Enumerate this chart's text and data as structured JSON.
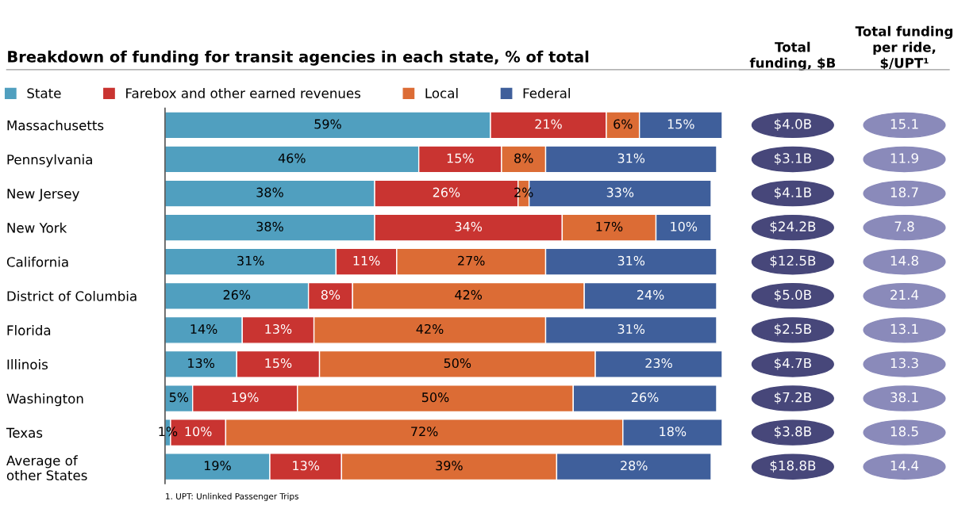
{
  "chart_data": [
    {
      "type": "bar",
      "orientation": "horizontal",
      "stacked": true,
      "legend": "top",
      "grid": false,
      "title": "Breakdown of funding for transit agencies in each state, % of total",
      "categories": [
        "Massachusetts",
        "Pennsylvania",
        "New Jersey",
        "New York",
        "California",
        "District of Columbia",
        "Florida",
        "Illinois",
        "Washington",
        "Texas",
        "Average of\nother States"
      ],
      "series": [
        {
          "name": "State",
          "color": "#509fbf",
          "values": [
            59,
            46,
            38,
            38,
            31,
            26,
            14,
            13,
            5,
            1,
            19
          ],
          "value_labels": [
            "59%",
            "46%",
            "38%",
            "38%",
            "31%",
            "26%",
            "14%",
            "13%",
            "5%",
            "1%",
            "19%"
          ]
        },
        {
          "name": "Farebox and other earned revenues",
          "color": "#c93431",
          "values": [
            21,
            15,
            26,
            34,
            11,
            8,
            13,
            15,
            19,
            10,
            13
          ],
          "value_labels": [
            "21%",
            "15%",
            "26%",
            "34%",
            "11%",
            "8%",
            "13%",
            "15%",
            "19%",
            "10%",
            "13%"
          ]
        },
        {
          "name": "Local",
          "color": "#dc6c35",
          "values": [
            6,
            8,
            2,
            17,
            27,
            42,
            42,
            50,
            50,
            72,
            39
          ],
          "value_labels": [
            "6%",
            "8%",
            "2%",
            "17%",
            "27%",
            "42%",
            "42%",
            "50%",
            "50%",
            "72%",
            "39%"
          ]
        },
        {
          "name": "Federal",
          "color": "#3f5f9b",
          "values": [
            15,
            31,
            33,
            10,
            31,
            24,
            31,
            23,
            26,
            18,
            28
          ],
          "value_labels": [
            "15%",
            "31%",
            "33%",
            "10%",
            "31%",
            "24%",
            "31%",
            "23%",
            "26%",
            "18%",
            "28%"
          ]
        }
      ],
      "annotations": [
        "1. UPT: Unlinked Passenger Trips"
      ]
    },
    {
      "type": "other",
      "title": "Total\nfunding, $B",
      "color": "#47477a",
      "values": [
        4.0,
        3.1,
        4.1,
        24.2,
        12.5,
        5.0,
        2.5,
        4.7,
        7.2,
        3.8,
        18.8
      ],
      "value_labels": [
        "$4.0B",
        "$3.1B",
        "$4.1B",
        "$24.2B",
        "$12.5B",
        "$5.0B",
        "$2.5B",
        "$4.7B",
        "$7.2B",
        "$3.8B",
        "$18.8B"
      ]
    },
    {
      "type": "other",
      "title": "Total funding\nper ride,\n$/UPT¹",
      "color": "#8a8aba",
      "data_labels": true,
      "values": [
        15.1,
        11.9,
        18.7,
        7.8,
        14.8,
        21.4,
        13.1,
        13.3,
        38.1,
        18.5,
        14.4
      ]
    }
  ]
}
